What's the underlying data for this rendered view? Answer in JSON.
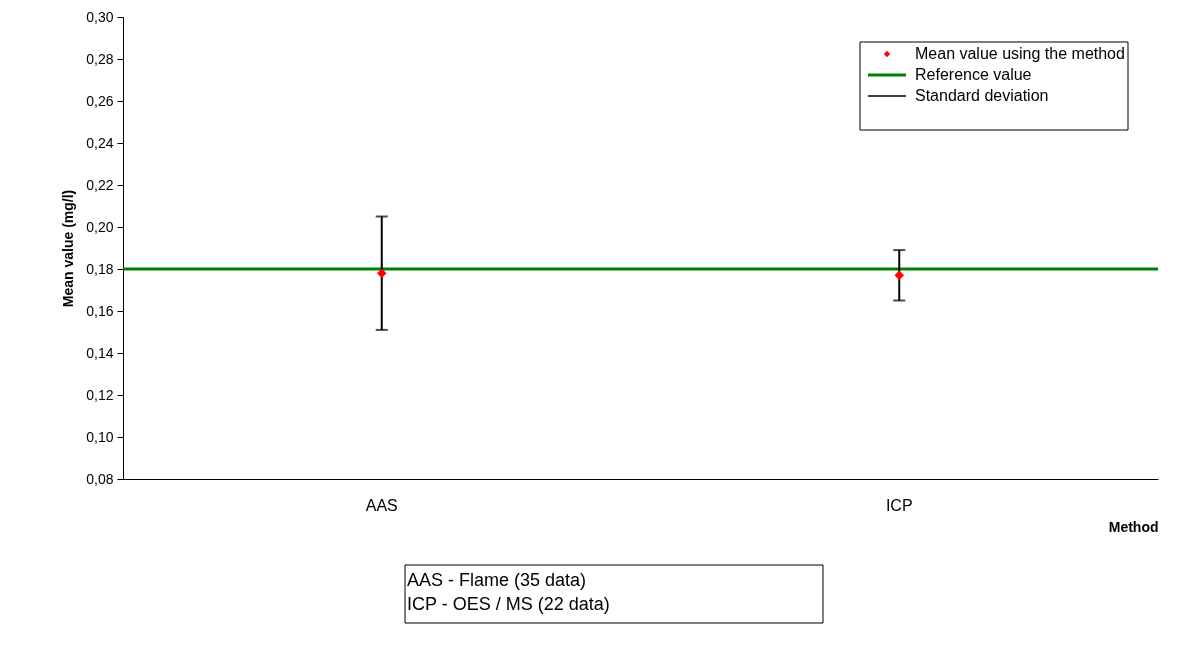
{
  "chart_data": {
    "type": "scatter",
    "categories": [
      "AAS",
      "ICP"
    ],
    "series": [
      {
        "name": "Mean value using the  method",
        "color": "#ff0000",
        "values": [
          0.178,
          0.177
        ],
        "errors": [
          [
            0.151,
            0.205
          ],
          [
            0.165,
            0.189
          ]
        ]
      }
    ],
    "ref_lines": [
      {
        "axis": "y",
        "value": 0.18,
        "label": "Reference value",
        "color": "#008000",
        "line_style": "solid"
      }
    ],
    "annotations": [
      "Standard deviation",
      "AAS - Flame  (35 data)",
      "ICP - OES / MS (22 data)"
    ],
    "xlabel": "Method",
    "ylabel": "Mean value (mg/l)",
    "ylim": [
      0.08,
      0.3
    ],
    "yticks": [
      {
        "value": 0.08,
        "label": "0,08"
      },
      {
        "value": 0.1,
        "label": "0,10"
      },
      {
        "value": 0.12,
        "label": "0,12"
      },
      {
        "value": 0.14,
        "label": "0,14"
      },
      {
        "value": 0.16,
        "label": "0,16"
      },
      {
        "value": 0.18,
        "label": "0,18"
      },
      {
        "value": 0.2,
        "label": "0,20"
      },
      {
        "value": 0.22,
        "label": "0,22"
      },
      {
        "value": 0.24,
        "label": "0,24"
      },
      {
        "value": 0.26,
        "label": "0,26"
      },
      {
        "value": 0.28,
        "label": "0,28"
      },
      {
        "value": 0.3,
        "label": "0,30"
      }
    ],
    "marker": "diamond",
    "legend": "top right"
  }
}
